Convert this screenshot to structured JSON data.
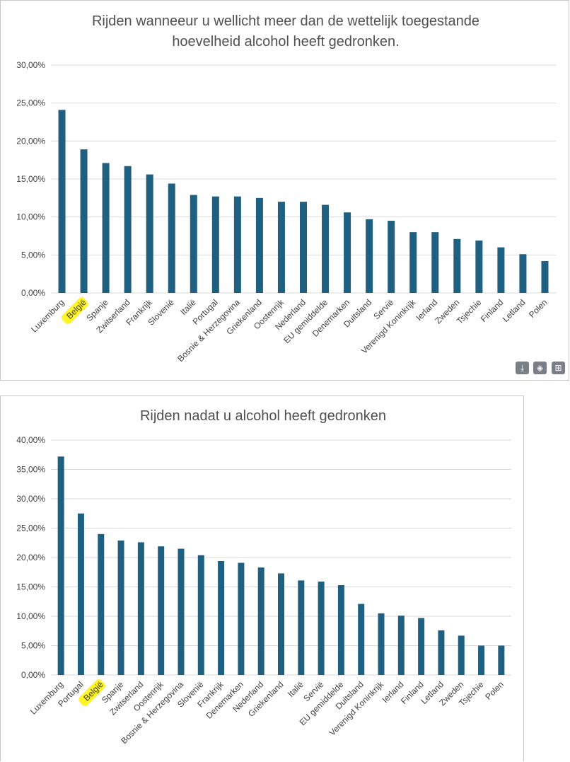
{
  "chart_data": [
    {
      "type": "bar",
      "title": [
        "Rijden wanneeur u wellicht meer dan de wettelijk toegestande",
        "hoevelheid alcohol heeft gedronken."
      ],
      "categories": [
        "Luxemburg",
        "België",
        "Spanje",
        "Zwitserland",
        "Frankrijk",
        "Slovenië",
        "Italië",
        "Portugal",
        "Bosnie & Herzegovina",
        "Griekenland",
        "Oostenrijk",
        "Nederland",
        "EU gemiddelde",
        "Denemarken",
        "Duitsland",
        "Servië",
        "Verenigd Koninkrijk",
        "Ierland",
        "Zweden",
        "Tsjechie",
        "Finland",
        "Letland",
        "Polen"
      ],
      "values": [
        24.1,
        18.9,
        17.1,
        16.7,
        15.6,
        14.4,
        12.9,
        12.7,
        12.7,
        12.5,
        12.0,
        12.0,
        11.6,
        10.6,
        9.7,
        9.5,
        8.0,
        8.0,
        7.1,
        6.9,
        6.0,
        5.1,
        4.2
      ],
      "yticks": [
        "0,00%",
        "5,00%",
        "10,00%",
        "15,00%",
        "20,00%",
        "25,00%",
        "30,00%"
      ],
      "ylim": [
        0,
        30
      ],
      "highlighted_category": "België",
      "color": "#1f5f80"
    },
    {
      "type": "bar",
      "title": [
        "Rijden nadat u alcohol heeft gedronken"
      ],
      "categories": [
        "Luxemburg",
        "Portugal",
        "België",
        "Spanje",
        "Zwitserland",
        "Oostenrijk",
        "Bosnie & Herzegovina",
        "Slovenië",
        "Frankrijk",
        "Denemarken",
        "Nederland",
        "Griekenland",
        "Italië",
        "Servië",
        "EU gemiddelde",
        "Duitsland",
        "Verenigd Koninkrijk",
        "Ierland",
        "Finland",
        "Letland",
        "Zweden",
        "Tsjechie",
        "Polen"
      ],
      "values": [
        37.2,
        27.5,
        24.0,
        22.9,
        22.6,
        21.9,
        21.5,
        20.4,
        19.4,
        19.1,
        18.3,
        17.3,
        16.1,
        15.9,
        15.3,
        12.1,
        10.5,
        10.1,
        9.7,
        7.6,
        6.7,
        5.0,
        5.0
      ],
      "yticks": [
        "0,00%",
        "5,00%",
        "10,00%",
        "15,00%",
        "20,00%",
        "25,00%",
        "30,00%",
        "35,00%",
        "40,00%"
      ],
      "ylim": [
        0,
        40
      ],
      "highlighted_category": "België",
      "color": "#1f5f80"
    }
  ],
  "toolbar": {
    "icons": [
      "download-icon",
      "image-search-icon",
      "add-icon"
    ],
    "glyphs": [
      "⤓",
      "◈",
      "⊞"
    ]
  }
}
